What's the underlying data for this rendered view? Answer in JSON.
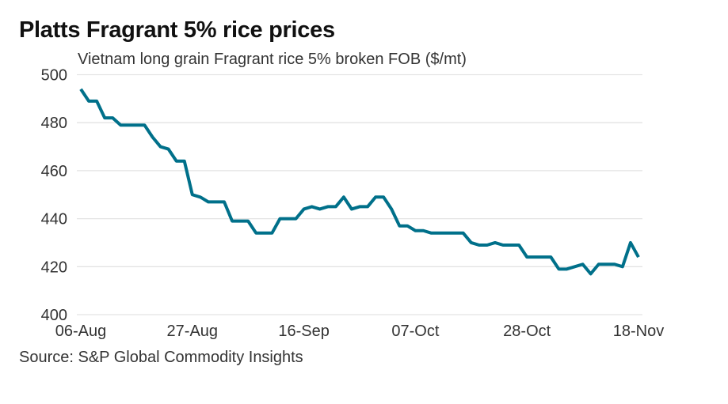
{
  "chart_data": {
    "type": "line",
    "title": "Platts Fragrant 5% rice prices",
    "subtitle": "Vietnam long grain Fragrant rice 5% broken FOB ($/mt)",
    "source": "Source: S&P Global Commodity Insights",
    "xlabel": "",
    "ylabel": "",
    "ylim": [
      400,
      500
    ],
    "yticks": [
      400,
      420,
      440,
      460,
      480,
      500
    ],
    "xtick_labels": [
      {
        "index": 0,
        "label": "06-Aug"
      },
      {
        "index": 14,
        "label": "27-Aug"
      },
      {
        "index": 28,
        "label": "16-Sep"
      },
      {
        "index": 42,
        "label": "07-Oct"
      },
      {
        "index": 56,
        "label": "28-Oct"
      },
      {
        "index": 70,
        "label": "18-Nov"
      }
    ],
    "grid": true,
    "legend": "none",
    "series": [
      {
        "name": "Vietnam long grain Fragrant rice 5% broken FOB ($/mt)",
        "color": "#00708a",
        "values": [
          494,
          489,
          489,
          482,
          482,
          479,
          479,
          479,
          479,
          474,
          470,
          469,
          464,
          464,
          450,
          449,
          447,
          447,
          447,
          439,
          439,
          439,
          434,
          434,
          434,
          440,
          440,
          440,
          444,
          445,
          444,
          445,
          445,
          449,
          444,
          445,
          445,
          449,
          449,
          444,
          437,
          437,
          435,
          435,
          434,
          434,
          434,
          434,
          434,
          430,
          429,
          429,
          430,
          429,
          429,
          429,
          424,
          424,
          424,
          424,
          419,
          419,
          420,
          421,
          417,
          421,
          421,
          421,
          420,
          430,
          424
        ]
      }
    ]
  }
}
